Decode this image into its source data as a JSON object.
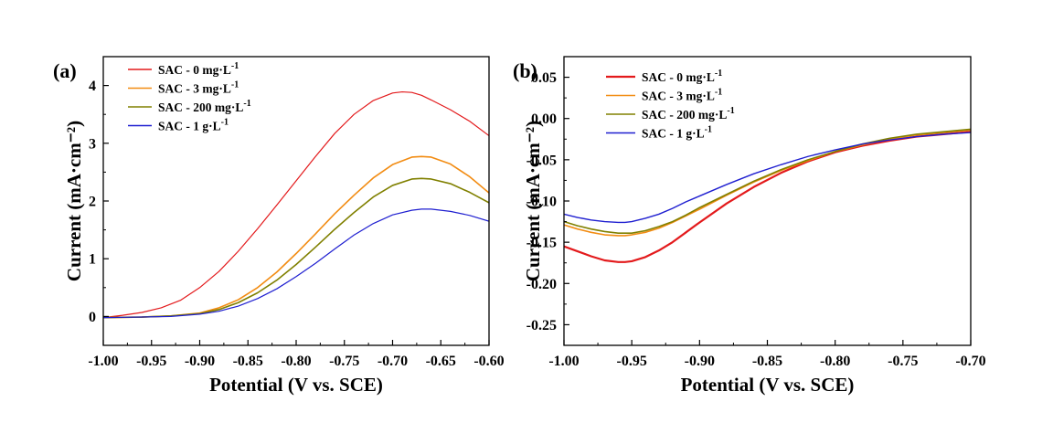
{
  "chart_data": [
    {
      "type": "line",
      "panel_label": "(a)",
      "xlabel": "Potential (V vs. SCE)",
      "ylabel": "Current (mA·cm⁻²)",
      "xlim": [
        -1.0,
        -0.6
      ],
      "ylim": [
        -0.5,
        4.5
      ],
      "xticks": [
        -1.0,
        -0.95,
        -0.9,
        -0.85,
        -0.8,
        -0.75,
        -0.7,
        -0.65,
        -0.6
      ],
      "xtick_labels": [
        "-1.00",
        "-0.95",
        "-0.90",
        "-0.85",
        "-0.80",
        "-0.75",
        "-0.70",
        "-0.65",
        "-0.60"
      ],
      "yticks": [
        0,
        1,
        2,
        3,
        4
      ],
      "ytick_labels": [
        "0",
        "1",
        "2",
        "3",
        "4"
      ],
      "grid": false,
      "legend_position": "top-left",
      "series": [
        {
          "name": "SAC - 0 mg·L",
          "name_sup": "-1",
          "color": "#e31a1c",
          "width": 1.2,
          "x": [
            -1.0,
            -0.98,
            -0.96,
            -0.94,
            -0.92,
            -0.9,
            -0.88,
            -0.86,
            -0.84,
            -0.82,
            -0.8,
            -0.78,
            -0.76,
            -0.74,
            -0.72,
            -0.7,
            -0.69,
            -0.68,
            -0.67,
            -0.66,
            -0.64,
            -0.62,
            -0.6
          ],
          "y": [
            -0.02,
            0.02,
            0.07,
            0.15,
            0.28,
            0.5,
            0.78,
            1.13,
            1.52,
            1.93,
            2.35,
            2.77,
            3.17,
            3.5,
            3.74,
            3.87,
            3.89,
            3.88,
            3.83,
            3.75,
            3.58,
            3.38,
            3.13
          ]
        },
        {
          "name": "SAC - 3 mg·L",
          "name_sup": "-1",
          "color": "#f28c13",
          "width": 1.6,
          "x": [
            -1.0,
            -0.96,
            -0.93,
            -0.9,
            -0.88,
            -0.86,
            -0.84,
            -0.82,
            -0.8,
            -0.78,
            -0.76,
            -0.74,
            -0.72,
            -0.7,
            -0.68,
            -0.67,
            -0.66,
            -0.64,
            -0.62,
            -0.6
          ],
          "y": [
            -0.02,
            -0.01,
            0.01,
            0.06,
            0.15,
            0.29,
            0.5,
            0.77,
            1.09,
            1.43,
            1.78,
            2.1,
            2.4,
            2.63,
            2.76,
            2.77,
            2.76,
            2.64,
            2.42,
            2.14
          ]
        },
        {
          "name": "SAC - 200 mg·L",
          "name_sup": "-1",
          "color": "#808000",
          "width": 1.6,
          "x": [
            -1.0,
            -0.96,
            -0.93,
            -0.9,
            -0.88,
            -0.86,
            -0.84,
            -0.82,
            -0.8,
            -0.78,
            -0.76,
            -0.74,
            -0.72,
            -0.7,
            -0.68,
            -0.67,
            -0.66,
            -0.64,
            -0.62,
            -0.6
          ],
          "y": [
            -0.02,
            -0.01,
            0.01,
            0.05,
            0.12,
            0.24,
            0.41,
            0.63,
            0.9,
            1.2,
            1.51,
            1.8,
            2.07,
            2.27,
            2.38,
            2.39,
            2.38,
            2.3,
            2.15,
            1.97
          ]
        },
        {
          "name": "SAC - 1 g·L",
          "name_sup": "-1",
          "color": "#1f1fd0",
          "width": 1.2,
          "x": [
            -1.0,
            -0.96,
            -0.93,
            -0.9,
            -0.88,
            -0.86,
            -0.84,
            -0.82,
            -0.8,
            -0.78,
            -0.76,
            -0.74,
            -0.72,
            -0.7,
            -0.68,
            -0.67,
            -0.66,
            -0.64,
            -0.62,
            -0.6
          ],
          "y": [
            -0.02,
            -0.01,
            0.0,
            0.04,
            0.09,
            0.18,
            0.31,
            0.48,
            0.69,
            0.92,
            1.17,
            1.41,
            1.61,
            1.76,
            1.84,
            1.86,
            1.86,
            1.82,
            1.75,
            1.65
          ]
        }
      ]
    },
    {
      "type": "line",
      "panel_label": "(b)",
      "xlabel": "Potential (V vs. SCE)",
      "ylabel": "Current (mA·cm⁻²)",
      "xlim": [
        -1.0,
        -0.7
      ],
      "ylim": [
        -0.275,
        0.075
      ],
      "xticks": [
        -1.0,
        -0.95,
        -0.9,
        -0.85,
        -0.8,
        -0.75,
        -0.7
      ],
      "xtick_labels": [
        "-1.00",
        "-0.95",
        "-0.90",
        "-0.85",
        "-0.80",
        "-0.75",
        "-0.70"
      ],
      "yticks": [
        0.05,
        0.0,
        -0.05,
        -0.1,
        -0.15,
        -0.2,
        -0.25
      ],
      "ytick_labels": [
        "0.05",
        "0.00",
        "-0.05",
        "-0.10",
        "-0.15",
        "-0.20",
        "-0.25"
      ],
      "grid": false,
      "legend_position": "top-left",
      "series": [
        {
          "name": "SAC - 0 mg·L",
          "name_sup": "-1",
          "color": "#e31a1c",
          "width": 2.2,
          "x": [
            -1.0,
            -0.99,
            -0.98,
            -0.97,
            -0.96,
            -0.955,
            -0.95,
            -0.94,
            -0.93,
            -0.92,
            -0.91,
            -0.9,
            -0.88,
            -0.86,
            -0.84,
            -0.82,
            -0.8,
            -0.78,
            -0.76,
            -0.74,
            -0.72,
            -0.7
          ],
          "y": [
            -0.155,
            -0.161,
            -0.167,
            -0.172,
            -0.174,
            -0.174,
            -0.173,
            -0.168,
            -0.16,
            -0.15,
            -0.138,
            -0.126,
            -0.103,
            -0.083,
            -0.066,
            -0.052,
            -0.041,
            -0.033,
            -0.027,
            -0.022,
            -0.019,
            -0.016
          ]
        },
        {
          "name": "SAC - 3 mg·L",
          "name_sup": "-1",
          "color": "#f28c13",
          "width": 1.6,
          "x": [
            -1.0,
            -0.99,
            -0.98,
            -0.97,
            -0.96,
            -0.955,
            -0.95,
            -0.94,
            -0.93,
            -0.92,
            -0.91,
            -0.9,
            -0.88,
            -0.86,
            -0.84,
            -0.82,
            -0.8,
            -0.78,
            -0.76,
            -0.74,
            -0.72,
            -0.7
          ],
          "y": [
            -0.129,
            -0.134,
            -0.138,
            -0.141,
            -0.142,
            -0.142,
            -0.141,
            -0.138,
            -0.133,
            -0.126,
            -0.118,
            -0.11,
            -0.093,
            -0.077,
            -0.063,
            -0.051,
            -0.04,
            -0.032,
            -0.025,
            -0.02,
            -0.017,
            -0.014
          ]
        },
        {
          "name": "SAC - 200 mg·L",
          "name_sup": "-1",
          "color": "#808000",
          "width": 1.6,
          "x": [
            -1.0,
            -0.99,
            -0.98,
            -0.97,
            -0.96,
            -0.955,
            -0.95,
            -0.94,
            -0.93,
            -0.92,
            -0.91,
            -0.9,
            -0.88,
            -0.86,
            -0.84,
            -0.82,
            -0.8,
            -0.78,
            -0.76,
            -0.74,
            -0.72,
            -0.7
          ],
          "y": [
            -0.125,
            -0.13,
            -0.134,
            -0.137,
            -0.139,
            -0.139,
            -0.139,
            -0.136,
            -0.131,
            -0.125,
            -0.117,
            -0.108,
            -0.092,
            -0.076,
            -0.062,
            -0.05,
            -0.04,
            -0.031,
            -0.024,
            -0.019,
            -0.016,
            -0.013
          ]
        },
        {
          "name": "SAC - 1 g·L",
          "name_sup": "-1",
          "color": "#1f1fd0",
          "width": 1.4,
          "x": [
            -1.0,
            -0.99,
            -0.98,
            -0.97,
            -0.96,
            -0.955,
            -0.95,
            -0.94,
            -0.93,
            -0.92,
            -0.91,
            -0.9,
            -0.88,
            -0.86,
            -0.84,
            -0.82,
            -0.8,
            -0.78,
            -0.76,
            -0.74,
            -0.72,
            -0.7
          ],
          "y": [
            -0.116,
            -0.12,
            -0.123,
            -0.125,
            -0.126,
            -0.126,
            -0.125,
            -0.121,
            -0.116,
            -0.109,
            -0.101,
            -0.094,
            -0.08,
            -0.067,
            -0.056,
            -0.046,
            -0.038,
            -0.031,
            -0.026,
            -0.022,
            -0.019,
            -0.017
          ]
        }
      ]
    }
  ]
}
